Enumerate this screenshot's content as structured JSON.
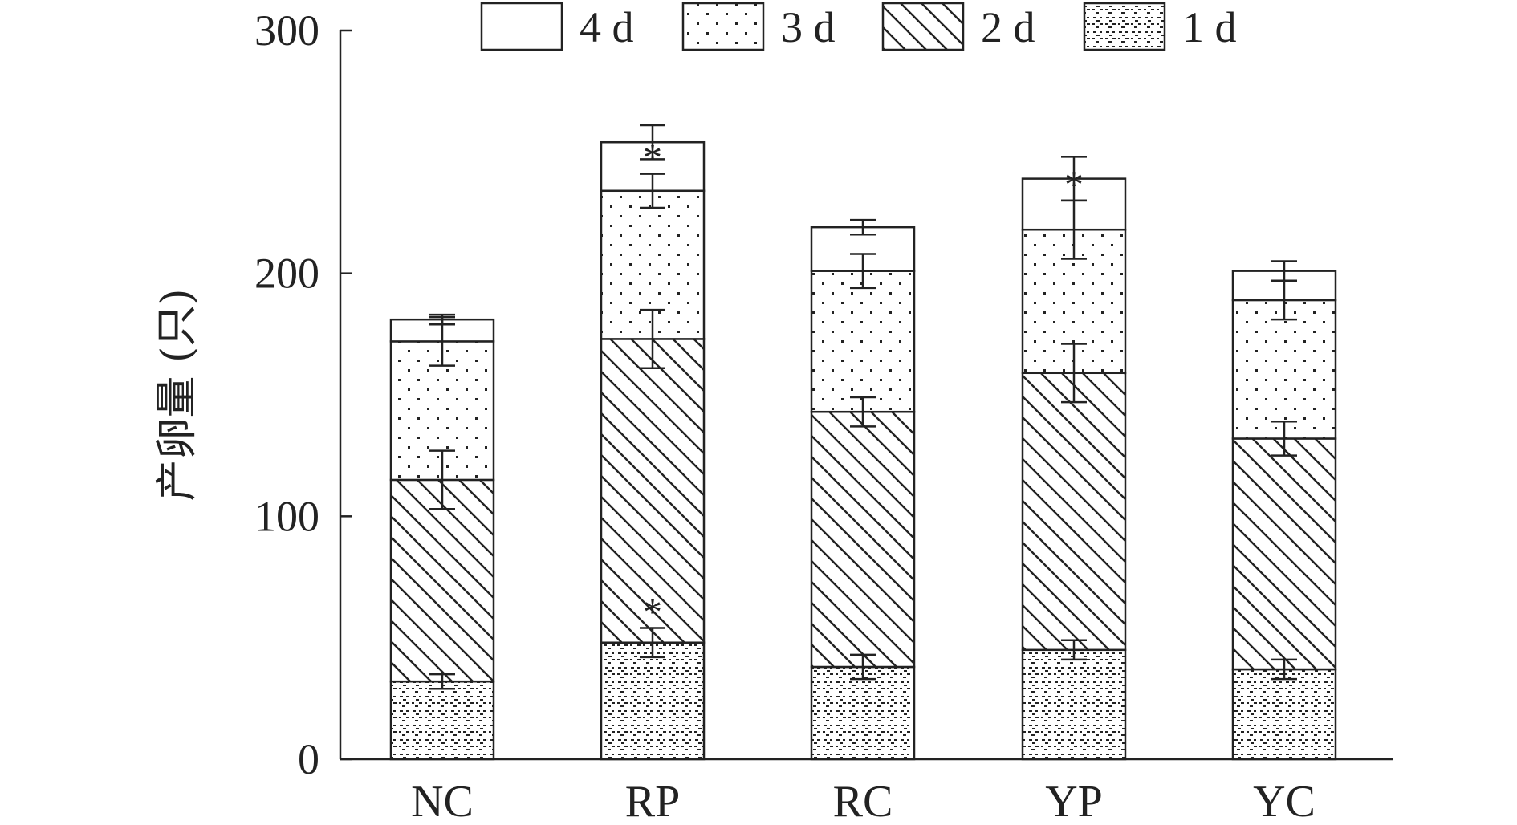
{
  "chart_data": {
    "type": "bar",
    "stacked": true,
    "title": "",
    "xlabel": "",
    "ylabel": "产卵量 (只)",
    "ylim": [
      0,
      300
    ],
    "yticks": [
      "0",
      "100",
      "200",
      "300"
    ],
    "categories": [
      "NC",
      "RP",
      "RC",
      "YP",
      "YC"
    ],
    "legend_position": "top",
    "legend_order": [
      "4 d",
      "3 d",
      "2 d",
      "1 d"
    ],
    "series": [
      {
        "name": "1 d",
        "pattern": "pattern-1d",
        "values": [
          32,
          48,
          38,
          45,
          37
        ],
        "errors": [
          3,
          6,
          5,
          4,
          4
        ]
      },
      {
        "name": "2 d",
        "pattern": "pattern-2d",
        "values": [
          83,
          125,
          105,
          114,
          95
        ],
        "errors": [
          12,
          12,
          6,
          12,
          7
        ]
      },
      {
        "name": "3 d",
        "pattern": "pattern-3d",
        "values": [
          57,
          61,
          58,
          59,
          57
        ],
        "errors": [
          10,
          7,
          7,
          12,
          8
        ]
      },
      {
        "name": "4 d",
        "pattern": "pattern-4d",
        "values": [
          9,
          20,
          18,
          21,
          12
        ],
        "errors": [
          2,
          7,
          3,
          9,
          4
        ]
      }
    ],
    "annotations": [
      {
        "category": "RP",
        "series": "1 d",
        "text": "*"
      },
      {
        "category": "RP",
        "series": "3 d",
        "text": "*"
      },
      {
        "category": "YP",
        "series": "3 d",
        "text": "*"
      }
    ]
  }
}
